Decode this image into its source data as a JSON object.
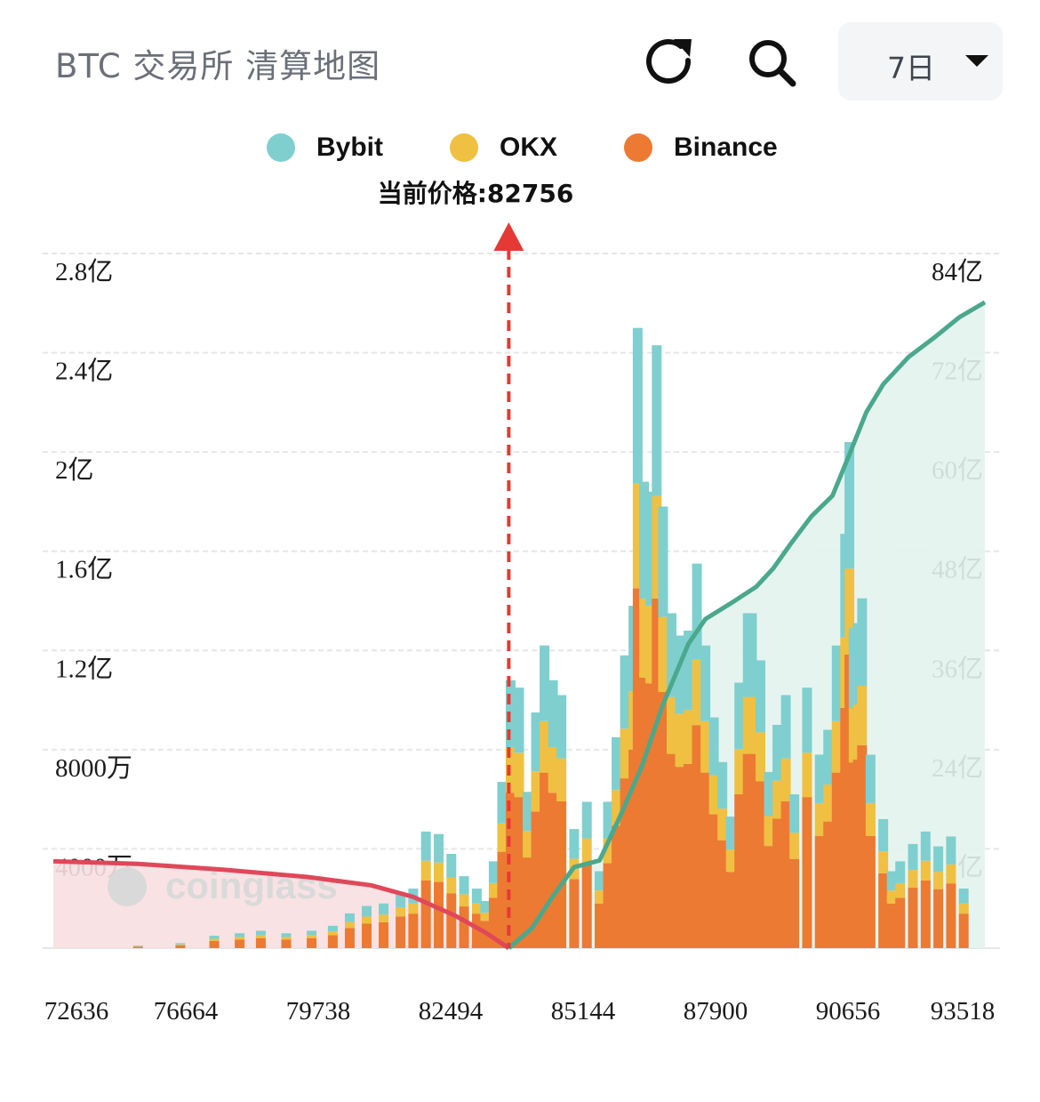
{
  "header": {
    "title": "BTC 交易所 清算地图",
    "refresh_icon": "refresh-icon",
    "search_icon": "search-icon",
    "period": "7日",
    "period_icon": "caret-down-icon"
  },
  "price_label": "当前价格:82756",
  "watermark": "coinglass",
  "colors": {
    "bybit": "#7fcfcf",
    "okx": "#efc042",
    "binance": "#ec7a33",
    "cum_short": "#4aa88c",
    "cum_long": "#e0485a",
    "price_marker": "#e53935"
  },
  "chart_data": {
    "type": "bar",
    "legend": [
      "Bybit",
      "OKX",
      "Binance"
    ],
    "x_ticks": [
      "72636",
      "76664",
      "79738",
      "82494",
      "85144",
      "87900",
      "90656",
      "93518"
    ],
    "y_left_ticks": [
      "4000万",
      "8000万",
      "1.2亿",
      "1.6亿",
      "2亿",
      "2.4亿",
      "2.8亿"
    ],
    "y_right_ticks": [
      "12亿",
      "24亿",
      "36亿",
      "48亿",
      "60亿",
      "72亿",
      "84亿"
    ],
    "y_left_range_yi": [
      0,
      2.8
    ],
    "y_right_range_yi": [
      0,
      84
    ],
    "x_range": [
      72000,
      94000
    ],
    "current_price": 82756,
    "bars_total_yi": [
      [
        74000,
        0.01
      ],
      [
        75000,
        0.02
      ],
      [
        75800,
        0.05
      ],
      [
        76400,
        0.06
      ],
      [
        76900,
        0.07
      ],
      [
        77500,
        0.06
      ],
      [
        78100,
        0.07
      ],
      [
        78600,
        0.09
      ],
      [
        79000,
        0.14
      ],
      [
        79400,
        0.17
      ],
      [
        79800,
        0.18
      ],
      [
        80200,
        0.22
      ],
      [
        80500,
        0.24
      ],
      [
        80800,
        0.47
      ],
      [
        81100,
        0.46
      ],
      [
        81400,
        0.38
      ],
      [
        81700,
        0.29
      ],
      [
        82000,
        0.24
      ],
      [
        82200,
        0.19
      ],
      [
        82400,
        0.35
      ],
      [
        82600,
        0.67
      ],
      [
        82800,
        1.08
      ],
      [
        83000,
        1.05
      ],
      [
        83200,
        0.63
      ],
      [
        83400,
        0.95
      ],
      [
        83600,
        1.22
      ],
      [
        83800,
        1.08
      ],
      [
        84000,
        1.02
      ],
      [
        84300,
        0.48
      ],
      [
        84600,
        0.59
      ],
      [
        84900,
        0.31
      ],
      [
        85100,
        0.59
      ],
      [
        85300,
        0.85
      ],
      [
        85500,
        1.18
      ],
      [
        85700,
        1.38
      ],
      [
        85800,
        2.5
      ],
      [
        85950,
        1.88
      ],
      [
        86100,
        1.84
      ],
      [
        86250,
        2.43
      ],
      [
        86400,
        1.78
      ],
      [
        86600,
        1.35
      ],
      [
        86800,
        1.26
      ],
      [
        87000,
        1.28
      ],
      [
        87200,
        1.55
      ],
      [
        87400,
        1.22
      ],
      [
        87600,
        0.93
      ],
      [
        87800,
        0.75
      ],
      [
        88000,
        0.53
      ],
      [
        88200,
        1.07
      ],
      [
        88400,
        1.35
      ],
      [
        88500,
        1.35
      ],
      [
        88700,
        1.16
      ],
      [
        88900,
        0.71
      ],
      [
        89100,
        0.9
      ],
      [
        89300,
        1.02
      ],
      [
        89500,
        0.62
      ],
      [
        89800,
        1.05
      ],
      [
        90100,
        0.78
      ],
      [
        90300,
        0.88
      ],
      [
        90500,
        1.22
      ],
      [
        90700,
        1.67
      ],
      [
        90800,
        2.04
      ],
      [
        90900,
        1.29
      ],
      [
        91000,
        1.31
      ],
      [
        91100,
        1.41
      ],
      [
        91300,
        0.78
      ],
      [
        91600,
        0.52
      ],
      [
        91800,
        0.31
      ],
      [
        92000,
        0.35
      ],
      [
        92300,
        0.42
      ],
      [
        92600,
        0.47
      ],
      [
        92900,
        0.41
      ],
      [
        93200,
        0.45
      ],
      [
        93500,
        0.24
      ]
    ],
    "cumulative_long_yi": [
      [
        72000,
        10.5
      ],
      [
        74000,
        10.2
      ],
      [
        76000,
        9.5
      ],
      [
        78000,
        8.6
      ],
      [
        79500,
        7.6
      ],
      [
        80500,
        6.2
      ],
      [
        81500,
        3.9
      ],
      [
        82200,
        1.9
      ],
      [
        82756,
        0
      ]
    ],
    "cumulative_short_yi": [
      [
        82756,
        0
      ],
      [
        83300,
        2.4
      ],
      [
        83800,
        6.3
      ],
      [
        84300,
        9.8
      ],
      [
        84900,
        10.6
      ],
      [
        85400,
        16.1
      ],
      [
        85900,
        22.0
      ],
      [
        86400,
        29.5
      ],
      [
        87000,
        36.8
      ],
      [
        87400,
        39.8
      ],
      [
        88000,
        41.7
      ],
      [
        88600,
        43.7
      ],
      [
        89000,
        45.9
      ],
      [
        89400,
        48.8
      ],
      [
        89900,
        52.2
      ],
      [
        90400,
        54.7
      ],
      [
        90800,
        59.7
      ],
      [
        91200,
        64.8
      ],
      [
        91600,
        68.2
      ],
      [
        92200,
        71.5
      ],
      [
        92800,
        73.8
      ],
      [
        93400,
        76.3
      ],
      [
        94000,
        78.1
      ]
    ]
  }
}
